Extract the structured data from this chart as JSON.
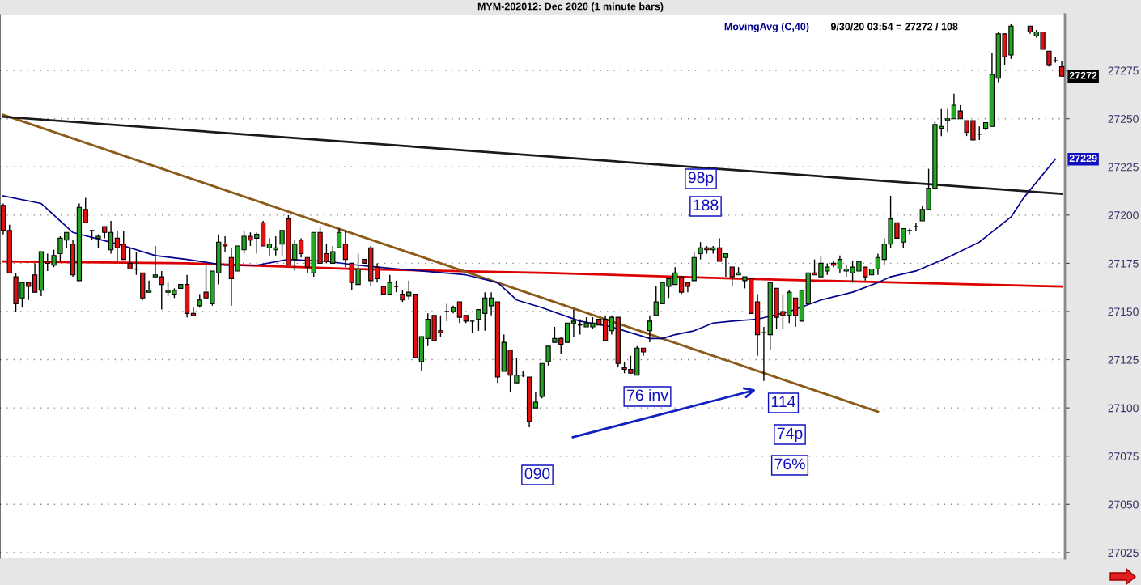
{
  "chart_data": {
    "type": "candlestick",
    "title": "MYM-202012: Dec 2020 (1 minute bars)",
    "categories": [
      null,
      null,
      null,
      null,
      null,
      null,
      null,
      null,
      null,
      null,
      null,
      null,
      null,
      null,
      null,
      null,
      null,
      null,
      null,
      null,
      null,
      null,
      null,
      null,
      null,
      null,
      null,
      null,
      null,
      null,
      null,
      null,
      null,
      null,
      null,
      null,
      null,
      null,
      null,
      null,
      null,
      null,
      null,
      null,
      null,
      null,
      null,
      null,
      null,
      null,
      null,
      null,
      null,
      null,
      null,
      null,
      null,
      null,
      null,
      null,
      null,
      null,
      null,
      null,
      null,
      null,
      null,
      null,
      null,
      null,
      null,
      null,
      null,
      null,
      null,
      null,
      null,
      null,
      null,
      null,
      null,
      null,
      null,
      null,
      null,
      null,
      null,
      null,
      null,
      null,
      null,
      null,
      null,
      null,
      null,
      null,
      null,
      null,
      null,
      null,
      null,
      null,
      null,
      null,
      null,
      null,
      null,
      null,
      null,
      null,
      null,
      null,
      null,
      null,
      null,
      null,
      null,
      null,
      null,
      null,
      null,
      null,
      null,
      null,
      null,
      null,
      null,
      null,
      null,
      null,
      null,
      null,
      null,
      null,
      null,
      null,
      null,
      null,
      null,
      null,
      null,
      null,
      null,
      null,
      null,
      null,
      null,
      null,
      null,
      null,
      null,
      null,
      null,
      null,
      null,
      null,
      null,
      null,
      null,
      null,
      null,
      null,
      null,
      null,
      null,
      null,
      null,
      null
    ],
    "ohlc": [
      [
        27205,
        27206,
        27190,
        27192
      ],
      [
        27192,
        27195,
        27170,
        27170
      ],
      [
        27168,
        27170,
        27150,
        27154
      ],
      [
        27157,
        27165,
        27152,
        27165
      ],
      [
        27165,
        27165,
        27156,
        27163
      ],
      [
        27169,
        27175,
        27160,
        27160
      ],
      [
        27161,
        27181,
        27158,
        27181
      ],
      [
        27176,
        27180,
        27171,
        27175
      ],
      [
        27174,
        27182,
        27173,
        27179
      ],
      [
        27180,
        27189,
        27176,
        27188
      ],
      [
        27187,
        27191,
        27183,
        27191
      ],
      [
        27185,
        27187,
        27168,
        27169
      ],
      [
        27166,
        27206,
        27166,
        27204
      ],
      [
        27203,
        27209,
        27196,
        27196
      ],
      [
        27192,
        27192,
        27187,
        27192
      ],
      [
        27188,
        27190,
        27183,
        27189
      ],
      [
        27194,
        27194,
        27188,
        27191
      ],
      [
        27182,
        27197,
        27180,
        27191
      ],
      [
        27188,
        27192,
        27176,
        27183
      ],
      [
        27185,
        27192,
        27177,
        27177
      ],
      [
        27175,
        27183,
        27172,
        27172
      ],
      [
        27172,
        27181,
        27169,
        27172
      ],
      [
        27170,
        27170,
        27156,
        27157
      ],
      [
        27160,
        27166,
        27160,
        27161
      ],
      [
        27168,
        27184,
        27168,
        27169
      ],
      [
        27168,
        27171,
        27151,
        27164
      ],
      [
        27160,
        27165,
        27158,
        27161
      ],
      [
        27159,
        27162,
        27157,
        27161
      ],
      [
        27162,
        27164,
        27162,
        27164
      ],
      [
        27164,
        27169,
        27147,
        27149
      ],
      [
        27149,
        27152,
        27148,
        27148
      ],
      [
        27153,
        27159,
        27152,
        27156
      ],
      [
        27160,
        27174,
        27157,
        27157
      ],
      [
        27154,
        27171,
        27153,
        27171
      ],
      [
        27170,
        27190,
        27164,
        27186
      ],
      [
        27185,
        27189,
        27181,
        27184
      ],
      [
        27178,
        27183,
        27153,
        27167
      ],
      [
        27171,
        27184,
        27171,
        27184
      ],
      [
        27182,
        27192,
        27180,
        27189
      ],
      [
        27189,
        27191,
        27184,
        27187
      ],
      [
        27188,
        27191,
        27180,
        27190
      ],
      [
        27196,
        27197,
        27184,
        27184
      ],
      [
        27183,
        27188,
        27179,
        27185
      ],
      [
        27182,
        27189,
        27179,
        27183
      ],
      [
        27185,
        27192,
        27179,
        27192
      ],
      [
        27198,
        27200,
        27174,
        27174
      ],
      [
        27177,
        27187,
        27171,
        27185
      ],
      [
        27187,
        27188,
        27178,
        27180
      ],
      [
        27178,
        27178,
        27170,
        27173
      ],
      [
        27170,
        27191,
        27168,
        27191
      ],
      [
        27191,
        27194,
        27175,
        27175
      ],
      [
        27180,
        27185,
        27175,
        27176
      ],
      [
        27175,
        27184,
        27175,
        27181
      ],
      [
        27183,
        27193,
        27183,
        27191
      ],
      [
        27185,
        27192,
        27173,
        27177
      ],
      [
        27175,
        27175,
        27161,
        27165
      ],
      [
        27164,
        27180,
        27164,
        27172
      ],
      [
        27177,
        27177,
        27175,
        27175
      ],
      [
        27183,
        27184,
        27163,
        27166
      ],
      [
        27173,
        27175,
        27165,
        27167
      ],
      [
        27163,
        27163,
        27159,
        27159
      ],
      [
        27159,
        27169,
        27159,
        27165
      ],
      [
        27163,
        27166,
        27160,
        27163
      ],
      [
        27159,
        27161,
        27155,
        27156
      ],
      [
        27158,
        27166,
        27156,
        27160
      ],
      [
        27159,
        27159,
        27126,
        27126
      ],
      [
        27124,
        27137,
        27119,
        27137
      ],
      [
        27136,
        27149,
        27132,
        27146
      ],
      [
        27148,
        27148,
        27135,
        27135
      ],
      [
        27140,
        27148,
        27137,
        27139
      ],
      [
        27150,
        27154,
        27145,
        27150
      ],
      [
        27150,
        27153,
        27149,
        27152
      ],
      [
        27155,
        27155,
        27144,
        27147
      ],
      [
        27148,
        27148,
        27144,
        27145
      ],
      [
        27145,
        27145,
        27139,
        27145
      ],
      [
        27146,
        27151,
        27140,
        27151
      ],
      [
        27149,
        27160,
        27140,
        27157
      ],
      [
        27153,
        27160,
        27148,
        27157
      ],
      [
        27155,
        27155,
        27113,
        27116
      ],
      [
        27119,
        27138,
        27119,
        27134
      ],
      [
        27130,
        27130,
        27108,
        27117
      ],
      [
        27113,
        27126,
        27113,
        27117
      ],
      [
        27117,
        27119,
        27116,
        27117
      ],
      [
        27116,
        27116,
        27090,
        27093
      ],
      [
        27100,
        27108,
        27100,
        27103
      ],
      [
        27106,
        27123,
        27105,
        27123
      ],
      [
        27124,
        27132,
        27122,
        27132
      ],
      [
        27134,
        27142,
        27134,
        27136
      ],
      [
        27136,
        27137,
        27128,
        27133
      ],
      [
        27134,
        27144,
        27134,
        27144
      ],
      [
        27144,
        27151,
        27137,
        27145
      ],
      [
        27143,
        27146,
        27138,
        27143
      ],
      [
        27142,
        27147,
        27142,
        27144
      ],
      [
        27142,
        27147,
        27141,
        27144
      ],
      [
        27146,
        27146,
        27143,
        27143
      ],
      [
        27146,
        27148,
        27135,
        27135
      ],
      [
        27140,
        27148,
        27138,
        27147
      ],
      [
        27147,
        27147,
        27121,
        27123
      ],
      [
        27121,
        27124,
        27118,
        27120
      ],
      [
        27120,
        27127,
        27118,
        27118
      ],
      [
        27117,
        27132,
        27117,
        27131
      ],
      [
        27131,
        27131,
        27127,
        27129
      ],
      [
        27140,
        27148,
        27134,
        27145
      ],
      [
        27148,
        27163,
        27148,
        27155
      ],
      [
        27154,
        27165,
        27154,
        27165
      ],
      [
        27163,
        27167,
        27157,
        27167
      ],
      [
        27164,
        27173,
        27164,
        27170
      ],
      [
        27168,
        27168,
        27159,
        27160
      ],
      [
        27165,
        27165,
        27160,
        27163
      ],
      [
        27166,
        27181,
        27166,
        27178
      ],
      [
        27180,
        27186,
        27177,
        27183
      ],
      [
        27183,
        27184,
        27180,
        27182
      ],
      [
        27182,
        27184,
        27180,
        27183
      ],
      [
        27183,
        27188,
        27176,
        27176
      ],
      [
        27178,
        27180,
        27168,
        27180
      ],
      [
        27173,
        27173,
        27163,
        27168
      ],
      [
        27169,
        27173,
        27169,
        27170
      ],
      [
        27166,
        27168,
        27162,
        27168
      ],
      [
        27167,
        27167,
        27149,
        27149
      ],
      [
        27155,
        27159,
        27127,
        27138
      ],
      [
        27139,
        27142,
        27114,
        27139
      ],
      [
        27138,
        27165,
        27130,
        27165
      ],
      [
        27162,
        27162,
        27141,
        27147
      ],
      [
        27150,
        27159,
        27141,
        27148
      ],
      [
        27148,
        27161,
        27144,
        27160
      ],
      [
        27157,
        27157,
        27142,
        27148
      ],
      [
        27145,
        27161,
        27145,
        27161
      ],
      [
        27154,
        27170,
        27154,
        27170
      ],
      [
        27170,
        27177,
        27169,
        27169
      ],
      [
        27168,
        27179,
        27168,
        27175
      ],
      [
        27171,
        27175,
        27169,
        27173
      ],
      [
        27175,
        27176,
        27173,
        27174
      ],
      [
        27172,
        27179,
        27170,
        27177
      ],
      [
        27171,
        27174,
        27168,
        27172
      ],
      [
        27170,
        27176,
        27165,
        27173
      ],
      [
        27171,
        27176,
        27171,
        27176
      ],
      [
        27173,
        27173,
        27166,
        27168
      ],
      [
        27169,
        27172,
        27169,
        27172
      ],
      [
        27172,
        27180,
        27169,
        27178
      ],
      [
        27177,
        27188,
        27174,
        27185
      ],
      [
        27185,
        27210,
        27183,
        27198
      ],
      [
        27196,
        27196,
        27188,
        27188
      ],
      [
        27186,
        27193,
        27183,
        27193
      ],
      [
        27192,
        27193,
        27190,
        27192
      ],
      [
        27194,
        27196,
        27192,
        27194
      ],
      [
        27197,
        27205,
        27197,
        27203
      ],
      [
        27203,
        27224,
        27203,
        27214
      ],
      [
        27214,
        27249,
        27214,
        27247
      ],
      [
        27245,
        27255,
        27241,
        27246
      ],
      [
        27249,
        27255,
        27243,
        27250
      ],
      [
        27250,
        27263,
        27250,
        27257
      ],
      [
        27254,
        27257,
        27250,
        27250
      ],
      [
        27249,
        27249,
        27241,
        27243
      ],
      [
        27249,
        27249,
        27239,
        27239
      ],
      [
        27242,
        27246,
        27239,
        27242
      ],
      [
        27245,
        27248,
        27244,
        27248
      ],
      [
        27246,
        27284,
        27246,
        27273
      ],
      [
        27271,
        27295,
        27269,
        27294
      ],
      [
        27294,
        27294,
        27278,
        27282
      ],
      [
        27283,
        27299,
        27281,
        27298
      ],
      null,
      null,
      [
        27298,
        27298,
        27294,
        27295
      ],
      [
        27293,
        27296,
        27292,
        27295
      ],
      [
        27295,
        27295,
        27286,
        27286
      ],
      [
        27285,
        27285,
        27277,
        27278
      ],
      [
        27280,
        27282,
        27279,
        27280
      ],
      [
        27277,
        27280,
        27272,
        27272
      ]
    ],
    "series": [
      {
        "name": "MovingAvg (C,40)",
        "type": "line",
        "color": "#00008b",
        "values": [
          27210,
          null,
          null,
          null,
          null,
          null,
          27206,
          null,
          null,
          null,
          null,
          27191,
          null,
          null,
          null,
          null,
          null,
          null,
          27185,
          null,
          null,
          null,
          null,
          null,
          27179,
          null,
          null,
          null,
          null,
          27177,
          null,
          null,
          null,
          null,
          null,
          27174,
          null,
          null,
          null,
          null,
          27174,
          null,
          null,
          null,
          null,
          27177,
          null,
          null,
          null,
          null,
          null,
          27176,
          null,
          null,
          null,
          null,
          27174,
          null,
          null,
          27173,
          null,
          null,
          null,
          null,
          null,
          null,
          27171,
          null,
          null,
          null,
          null,
          null,
          null,
          27169,
          null,
          null,
          null,
          null,
          27165,
          null,
          null,
          27156,
          null,
          null,
          null,
          27152,
          null,
          null,
          null,
          null,
          null,
          27145,
          null,
          null,
          null,
          null,
          27142,
          null,
          null,
          null,
          null,
          null,
          27136,
          null,
          27136,
          null,
          27138,
          null,
          null,
          27140,
          null,
          null,
          27144,
          null,
          null,
          27145,
          null,
          null,
          null,
          27146,
          null,
          null,
          null,
          null,
          27150,
          null,
          null,
          null,
          null,
          27156,
          null,
          null,
          null,
          null,
          27160,
          null,
          null,
          null,
          27165,
          null,
          27168,
          null,
          null,
          null,
          27171,
          null,
          null,
          null,
          null,
          27178,
          null,
          null,
          null,
          null,
          27186,
          null,
          null,
          null,
          null,
          27199,
          null,
          27209,
          null,
          null,
          null,
          null,
          27229,
          null
        ]
      },
      {
        "type": "line",
        "color": "#dd0000",
        "values": [
          27176,
          null,
          null,
          null,
          null,
          null,
          null,
          null,
          null,
          null,
          null,
          null,
          null,
          null,
          null,
          null,
          null,
          null,
          null,
          null,
          null,
          null,
          null,
          null,
          null,
          null,
          null,
          null,
          null,
          27175,
          null,
          null,
          null,
          null,
          null,
          null,
          null,
          null,
          null,
          null,
          null,
          null,
          null,
          null,
          null,
          null,
          null,
          null,
          null,
          null,
          null,
          null,
          null,
          null,
          null,
          null,
          27172,
          null,
          null,
          null,
          null,
          null,
          null,
          null,
          null,
          null,
          null,
          null,
          null,
          null,
          null,
          null,
          null,
          null,
          null,
          null,
          null,
          null,
          null,
          null,
          null,
          null,
          null,
          null,
          null,
          null,
          27170,
          null,
          null,
          null,
          null,
          null,
          null,
          null,
          null,
          null,
          null,
          null,
          null,
          null,
          null,
          null,
          null,
          null,
          null,
          null,
          null,
          null,
          null,
          null,
          null,
          null,
          null,
          null,
          null,
          null,
          27167,
          null,
          null,
          null,
          null,
          null,
          null,
          null,
          null,
          null,
          null,
          null,
          null,
          null,
          null,
          null,
          null,
          null,
          null,
          null,
          null,
          null,
          null,
          null,
          null,
          27165,
          null,
          null,
          null,
          null,
          null,
          null,
          null,
          null,
          null,
          null,
          null,
          null,
          null,
          null,
          null,
          null,
          null,
          null,
          null,
          null,
          null,
          null,
          null,
          null,
          null,
          27163
        ]
      },
      {
        "type": "line",
        "color": "#8b5a1a",
        "values": [
          27252,
          null,
          null,
          null,
          null,
          null,
          null,
          null,
          null,
          null,
          null,
          null,
          null,
          null,
          null,
          null,
          null,
          null,
          null,
          null,
          null,
          null,
          null,
          null,
          null,
          null,
          null,
          null,
          null,
          null,
          null,
          null,
          null,
          null,
          null,
          null,
          null,
          null,
          null,
          null,
          null,
          null,
          null,
          null,
          null,
          null,
          null,
          null,
          null,
          null,
          null,
          null,
          null,
          null,
          null,
          null,
          null,
          null,
          null,
          null,
          null,
          null,
          null,
          null,
          null,
          null,
          null,
          null,
          null,
          null,
          null,
          null,
          null,
          null,
          null,
          null,
          null,
          null,
          null,
          null,
          null,
          null,
          null,
          null,
          null,
          null,
          null,
          null,
          null,
          null,
          null,
          null,
          null,
          null,
          null,
          null,
          null,
          null,
          null,
          null,
          null,
          null,
          null,
          null,
          null,
          null,
          null,
          null,
          null,
          null,
          null,
          null,
          null,
          null,
          null,
          null,
          null,
          null,
          null,
          null,
          null,
          null,
          null,
          null,
          null,
          null,
          null,
          null,
          null,
          null,
          null,
          null,
          null,
          null,
          null,
          null,
          null,
          null,
          27098,
          null,
          null,
          null,
          null,
          null,
          null,
          null,
          null,
          null,
          null,
          null,
          null,
          null,
          null,
          null,
          null,
          null,
          null,
          null,
          null,
          null,
          null,
          null,
          null,
          null,
          null,
          null,
          null,
          null
        ]
      },
      {
        "type": "line",
        "color": "#1a1a1a",
        "values": [
          27251,
          null,
          null,
          null,
          null,
          null,
          null,
          null,
          null,
          null,
          null,
          null,
          null,
          null,
          null,
          null,
          null,
          null,
          null,
          null,
          null,
          null,
          null,
          null,
          null,
          null,
          null,
          null,
          null,
          null,
          null,
          null,
          null,
          null,
          null,
          null,
          null,
          null,
          null,
          null,
          null,
          null,
          null,
          null,
          null,
          null,
          null,
          null,
          null,
          null,
          null,
          null,
          null,
          null,
          null,
          null,
          null,
          null,
          null,
          null,
          null,
          null,
          null,
          null,
          null,
          null,
          null,
          null,
          null,
          null,
          null,
          null,
          null,
          null,
          null,
          null,
          null,
          null,
          null,
          null,
          null,
          null,
          null,
          null,
          null,
          null,
          null,
          null,
          null,
          null,
          null,
          null,
          null,
          null,
          null,
          null,
          null,
          null,
          null,
          null,
          null,
          null,
          null,
          null,
          null,
          null,
          null,
          null,
          null,
          null,
          null,
          null,
          null,
          null,
          null,
          null,
          null,
          null,
          null,
          null,
          null,
          null,
          null,
          null,
          null,
          null,
          null,
          null,
          null,
          null,
          null,
          null,
          null,
          null,
          null,
          null,
          null,
          null,
          null,
          null,
          null,
          null,
          null,
          null,
          null,
          null,
          null,
          null,
          null,
          null,
          null,
          null,
          null,
          null,
          null,
          null,
          null,
          null,
          null,
          null,
          null,
          null,
          null,
          null,
          null,
          null,
          null,
          27211
        ]
      }
    ],
    "ylim": [
      27022,
      27304
    ],
    "yticks": [
      27025,
      27050,
      27075,
      27100,
      27125,
      27150,
      27175,
      27200,
      27225,
      27250,
      27275
    ],
    "grid": "y",
    "legend": "top right",
    "tick_labels": "y",
    "annotations": [
      "98p",
      "188",
      "76 inv",
      "114",
      "74p",
      "76%",
      "090",
      "9/30/20 03:54 = 27272 / 108",
      "27272",
      "27229"
    ]
  }
}
